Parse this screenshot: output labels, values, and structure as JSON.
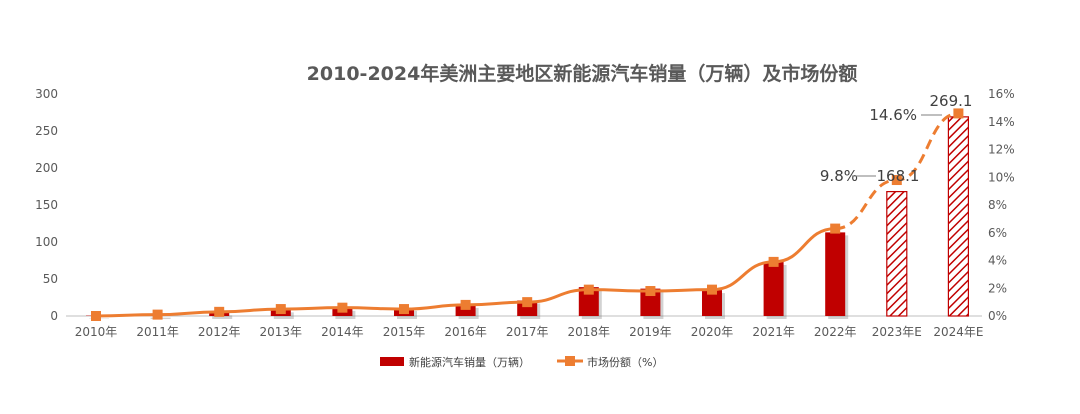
{
  "chart_data": {
    "type": "bar+line",
    "title": "2010-2024年美洲主要地区新能源汽车销量（万辆）及市场份额",
    "categories": [
      "2010年",
      "2011年",
      "2012年",
      "2013年",
      "2014年",
      "2015年",
      "2016年",
      "2017年",
      "2018年",
      "2019年",
      "2020年",
      "2021年",
      "2022年",
      "2023年E",
      "2024年E"
    ],
    "series": [
      {
        "name": "新能源汽车销量（万辆）",
        "type": "bar",
        "axis": "left",
        "values": [
          0.5,
          1.8,
          5,
          9,
          11,
          11,
          15,
          21,
          39,
          37,
          35,
          73,
          113,
          168.1,
          269.1
        ],
        "estimated_from_index": 13
      },
      {
        "name": "市场份额（%）",
        "type": "line",
        "axis": "right",
        "values": [
          0.0,
          0.1,
          0.3,
          0.5,
          0.6,
          0.5,
          0.8,
          1.0,
          1.9,
          1.8,
          1.9,
          3.9,
          6.3,
          9.8,
          14.6
        ],
        "estimated_from_index": 12
      }
    ],
    "y_left": {
      "ylim": [
        0,
        300
      ],
      "ticks": [
        "0",
        "50",
        "100",
        "150",
        "200",
        "250",
        "300"
      ]
    },
    "y_right": {
      "ylim": [
        0,
        16
      ],
      "ticks": [
        "0%",
        "2%",
        "4%",
        "6%",
        "8%",
        "10%",
        "12%",
        "14%",
        "16%"
      ]
    },
    "data_labels": [
      {
        "text": "9.8%",
        "series": "share",
        "index": 13
      },
      {
        "text": "168.1",
        "series": "sales",
        "index": 13
      },
      {
        "text": "14.6%",
        "series": "share",
        "index": 14
      },
      {
        "text": "269.1",
        "series": "sales",
        "index": 14
      }
    ],
    "legend": {
      "placement": "bottom-center",
      "items": [
        "新能源汽车销量（万辆）",
        "市场份额（%）"
      ]
    },
    "grid": false,
    "colors": {
      "bar": "#c00000",
      "line": "#ed7d31",
      "text": "#595959"
    }
  }
}
